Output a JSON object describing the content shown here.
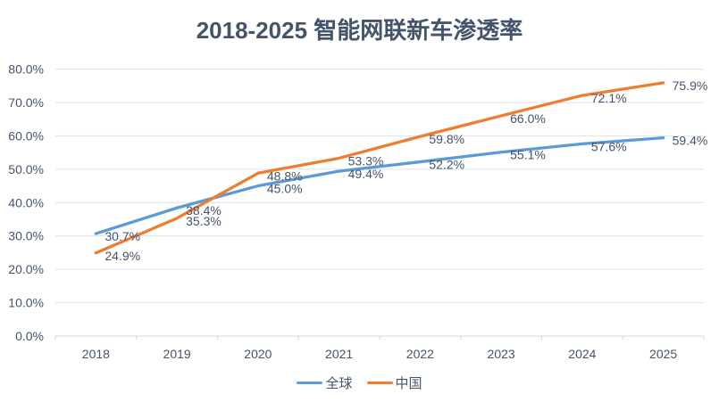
{
  "chart_data": {
    "type": "line",
    "title": "2018-2025 智能网联新车渗透率",
    "xlabel": "",
    "ylabel": "",
    "categories": [
      "2018",
      "2019",
      "2020",
      "2021",
      "2022",
      "2023",
      "2024",
      "2025"
    ],
    "series": [
      {
        "key": "global",
        "name": "全球",
        "color": "#5B9BD5",
        "values": [
          30.7,
          38.4,
          45.0,
          49.4,
          52.2,
          55.1,
          57.6,
          59.4
        ]
      },
      {
        "key": "china",
        "name": "中国",
        "color": "#ED7D31",
        "values": [
          24.9,
          35.3,
          48.8,
          53.3,
          59.8,
          66.0,
          72.1,
          75.9
        ]
      }
    ],
    "ylim": [
      0,
      80
    ],
    "y_ticks": [
      {
        "value": 0,
        "label": "0.0%"
      },
      {
        "value": 10,
        "label": "10.0%"
      },
      {
        "value": 20,
        "label": "20.0%"
      },
      {
        "value": 30,
        "label": "30.0%"
      },
      {
        "value": 40,
        "label": "40.0%"
      },
      {
        "value": 50,
        "label": "50.0%"
      },
      {
        "value": 60,
        "label": "60.0%"
      },
      {
        "value": 70,
        "label": "70.0%"
      },
      {
        "value": 80,
        "label": "80.0%"
      }
    ],
    "data_label_suffix": "%",
    "data_label_decimals": 1,
    "grid": true,
    "legend_position": "bottom",
    "legend": [
      "全球",
      "中国"
    ],
    "colors": {
      "text": "#44546A",
      "gridline": "#DCE3ED",
      "axis_line": "#D0D7E0"
    }
  }
}
